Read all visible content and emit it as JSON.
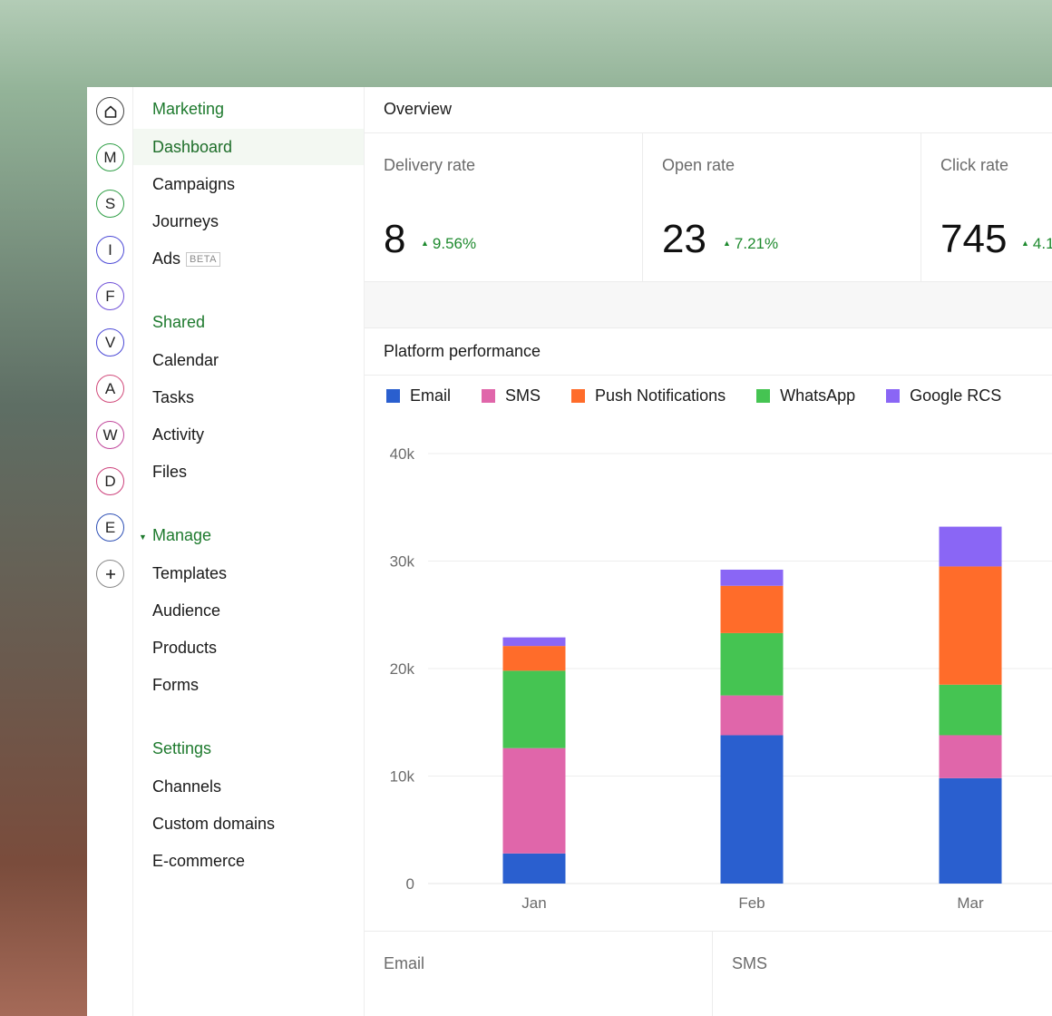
{
  "rail": {
    "items": [
      {
        "letter": "",
        "color": "#444444",
        "icon": "home-icon"
      },
      {
        "letter": "M",
        "color": "#2e9e45"
      },
      {
        "letter": "S",
        "color": "#2e9e45"
      },
      {
        "letter": "I",
        "color": "#4b49d6"
      },
      {
        "letter": "F",
        "color": "#6e4fd8"
      },
      {
        "letter": "V",
        "color": "#4b49d6"
      },
      {
        "letter": "A",
        "color": "#d14a7a"
      },
      {
        "letter": "W",
        "color": "#c0459a"
      },
      {
        "letter": "D",
        "color": "#cc3f7a"
      },
      {
        "letter": "E",
        "color": "#2d4fb5"
      },
      {
        "letter": "+",
        "color": "#888888",
        "icon": "plus-icon"
      }
    ]
  },
  "sidebar": {
    "marketing": {
      "heading": "Marketing",
      "items": [
        "Dashboard",
        "Campaigns",
        "Journeys",
        "Ads"
      ],
      "beta_label": "BETA"
    },
    "shared": {
      "heading": "Shared",
      "items": [
        "Calendar",
        "Tasks",
        "Activity",
        "Files"
      ]
    },
    "manage": {
      "heading": "Manage",
      "items": [
        "Templates",
        "Audience",
        "Products",
        "Forms"
      ]
    },
    "settings": {
      "heading": "Settings",
      "items": [
        "Channels",
        "Custom domains",
        "E-commerce"
      ]
    }
  },
  "overview": {
    "title": "Overview",
    "metrics": [
      {
        "label": "Delivery rate",
        "value": "8",
        "change": "9.56%"
      },
      {
        "label": "Open rate",
        "value": "23",
        "change": "7.21%"
      },
      {
        "label": "Click rate",
        "value": "745",
        "change": "4.1"
      }
    ]
  },
  "performance": {
    "title": "Platform performance"
  },
  "bottom": {
    "cells": [
      "Email",
      "SMS"
    ]
  },
  "colors": {
    "accent_green": "#1e7a2e",
    "Email": "#2a5fcf",
    "SMS": "#e066aa",
    "Push Notifications": "#ff6c2a",
    "WhatsApp": "#45c452",
    "Google RCS": "#8a66f5"
  },
  "chart_data": {
    "type": "bar",
    "stacked": true,
    "categories": [
      "Jan",
      "Feb",
      "Mar"
    ],
    "series": [
      {
        "name": "Email",
        "values": [
          2800,
          13800,
          9800
        ]
      },
      {
        "name": "SMS",
        "values": [
          9800,
          3700,
          4000
        ]
      },
      {
        "name": "WhatsApp",
        "values": [
          7200,
          5800,
          4700
        ]
      },
      {
        "name": "Push Notifications",
        "values": [
          2300,
          4400,
          11000
        ]
      },
      {
        "name": "Google RCS",
        "values": [
          800,
          1500,
          3700
        ]
      }
    ],
    "legend_order": [
      "Email",
      "SMS",
      "Push Notifications",
      "WhatsApp",
      "Google RCS"
    ],
    "yticks": [
      "0",
      "10k",
      "20k",
      "30k",
      "40k"
    ],
    "ylim": [
      0,
      40000
    ],
    "grid": true,
    "legend": "top-left",
    "title": "",
    "xlabel": "",
    "ylabel": ""
  }
}
